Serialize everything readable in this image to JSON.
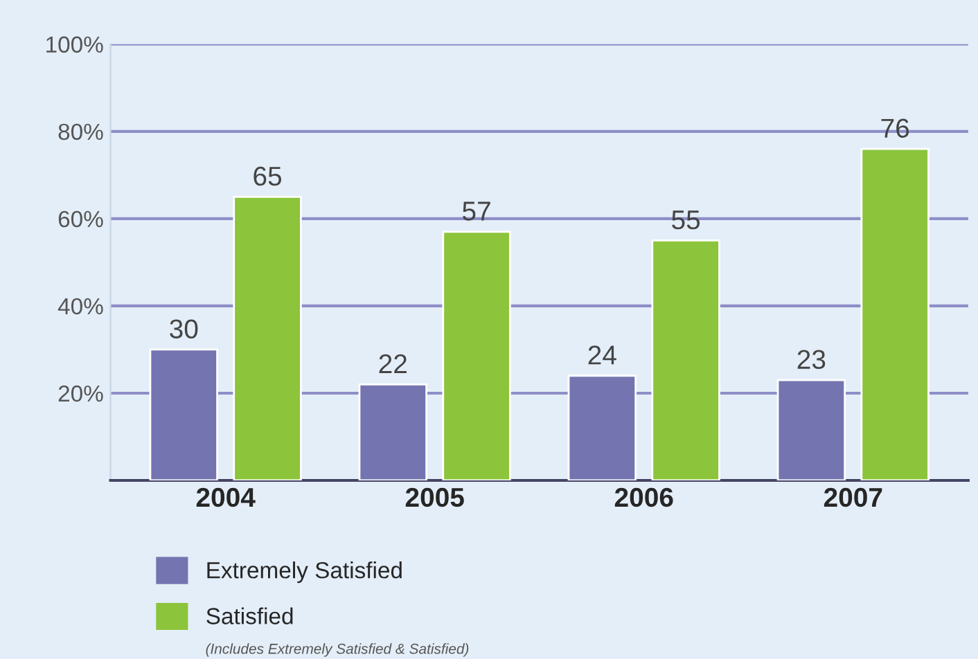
{
  "chart_data": {
    "type": "bar",
    "categories": [
      "2004",
      "2005",
      "2006",
      "2007"
    ],
    "series": [
      {
        "name": "Extremely Satisfied",
        "color": "#7474b0",
        "values": [
          30,
          22,
          24,
          23
        ]
      },
      {
        "name": "Satisfied",
        "color": "#8cc43c",
        "values": [
          65,
          57,
          55,
          76
        ]
      }
    ],
    "ylim": [
      0,
      100
    ],
    "yticks": [
      {
        "value": 20,
        "label": "20%"
      },
      {
        "value": 40,
        "label": "40%"
      },
      {
        "value": 60,
        "label": "60%"
      },
      {
        "value": 80,
        "label": "80%"
      },
      {
        "value": 100,
        "label": "100%"
      }
    ],
    "grid": "y",
    "data_labels": true,
    "legend": "bottom left",
    "annotations": [
      "(Includes Extremely Satisfied & Satisfied)"
    ]
  }
}
